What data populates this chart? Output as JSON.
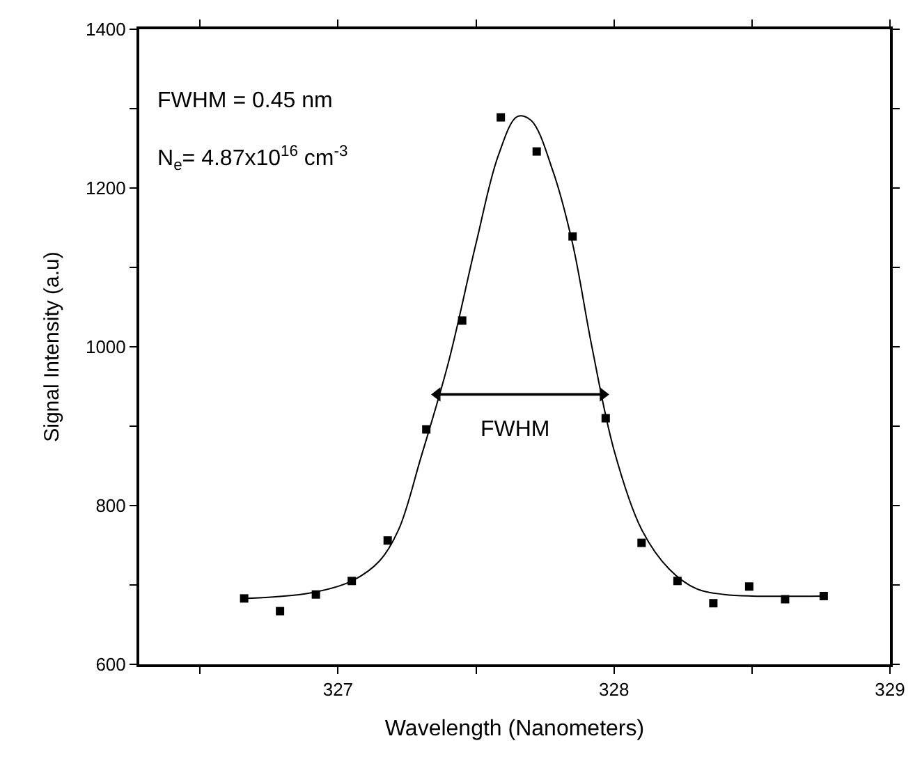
{
  "chart_data": {
    "type": "scatter",
    "xlabel": "Wavelength (Nanometers)",
    "ylabel": "Signal Intensity (a.u)",
    "annotations": [
      "FWHM = 0.45 nm",
      "N$_{e}$= 4.87x10$^{16}$ cm$^{-3}$",
      "FWHM"
    ],
    "series": [
      {
        "color": "#000000",
        "marker": "square",
        "x": [
          326.66,
          326.79,
          326.92,
          327.05,
          327.18,
          327.32,
          327.45,
          327.59,
          327.72,
          327.85,
          327.97,
          328.1,
          328.23,
          328.36,
          328.49,
          328.62,
          328.76
        ],
        "values": [
          683,
          667,
          688,
          705,
          756,
          896,
          1033,
          1289,
          1246,
          1139,
          910,
          753,
          705,
          677,
          698,
          682,
          686
        ]
      },
      {
        "type": "line",
        "color": "#000000",
        "marker": "none",
        "line_style": "solid",
        "x": [
          326.66,
          326.9,
          327.05,
          327.15,
          327.22,
          327.3,
          327.4,
          327.5,
          327.58,
          327.65,
          327.7,
          327.78,
          327.85,
          327.92,
          328.0,
          328.1,
          328.2,
          328.3,
          328.4,
          328.5,
          328.76
        ],
        "values": [
          683,
          690,
          705,
          730,
          770,
          860,
          980,
          1130,
          1240,
          1290,
          1285,
          1220,
          1130,
          1000,
          870,
          770,
          720,
          695,
          688,
          686,
          686
        ]
      },
      {
        "type": "line",
        "color": "#000000",
        "marker": "triangle",
        "line_style": "solid",
        "x": [
          327.36,
          327.96
        ],
        "values": [
          940,
          940
        ]
      }
    ],
    "xlim": [
      326.28,
      329.0
    ],
    "xticks": [
      {
        "value": 326.5,
        "label": null
      },
      327,
      {
        "value": 327.5,
        "label": null
      },
      328,
      {
        "value": 328.5,
        "label": null
      },
      329
    ],
    "ylim": [
      600,
      1400
    ],
    "yticks": [
      600,
      {
        "value": 700,
        "label": null
      },
      800,
      {
        "value": 900,
        "label": null
      },
      1000,
      {
        "value": 1100,
        "label": null
      },
      1200,
      {
        "value": 1300,
        "label": null
      },
      1400
    ],
    "legend": false
  }
}
